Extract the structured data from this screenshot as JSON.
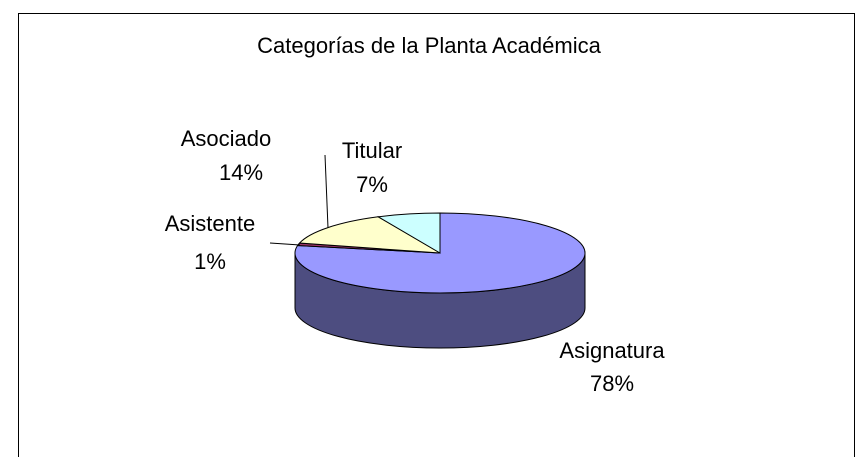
{
  "chart_data": {
    "type": "pie",
    "title": "Categorías de la Planta Académica",
    "categories": [
      "Asignatura",
      "Asistente",
      "Asociado",
      "Titular"
    ],
    "values": [
      78,
      1,
      14,
      7
    ],
    "value_labels": [
      "78%",
      "1%",
      "14%",
      "7%"
    ],
    "colors": [
      "#9999ff",
      "#993366",
      "#ffffcc",
      "#ccffff"
    ]
  }
}
